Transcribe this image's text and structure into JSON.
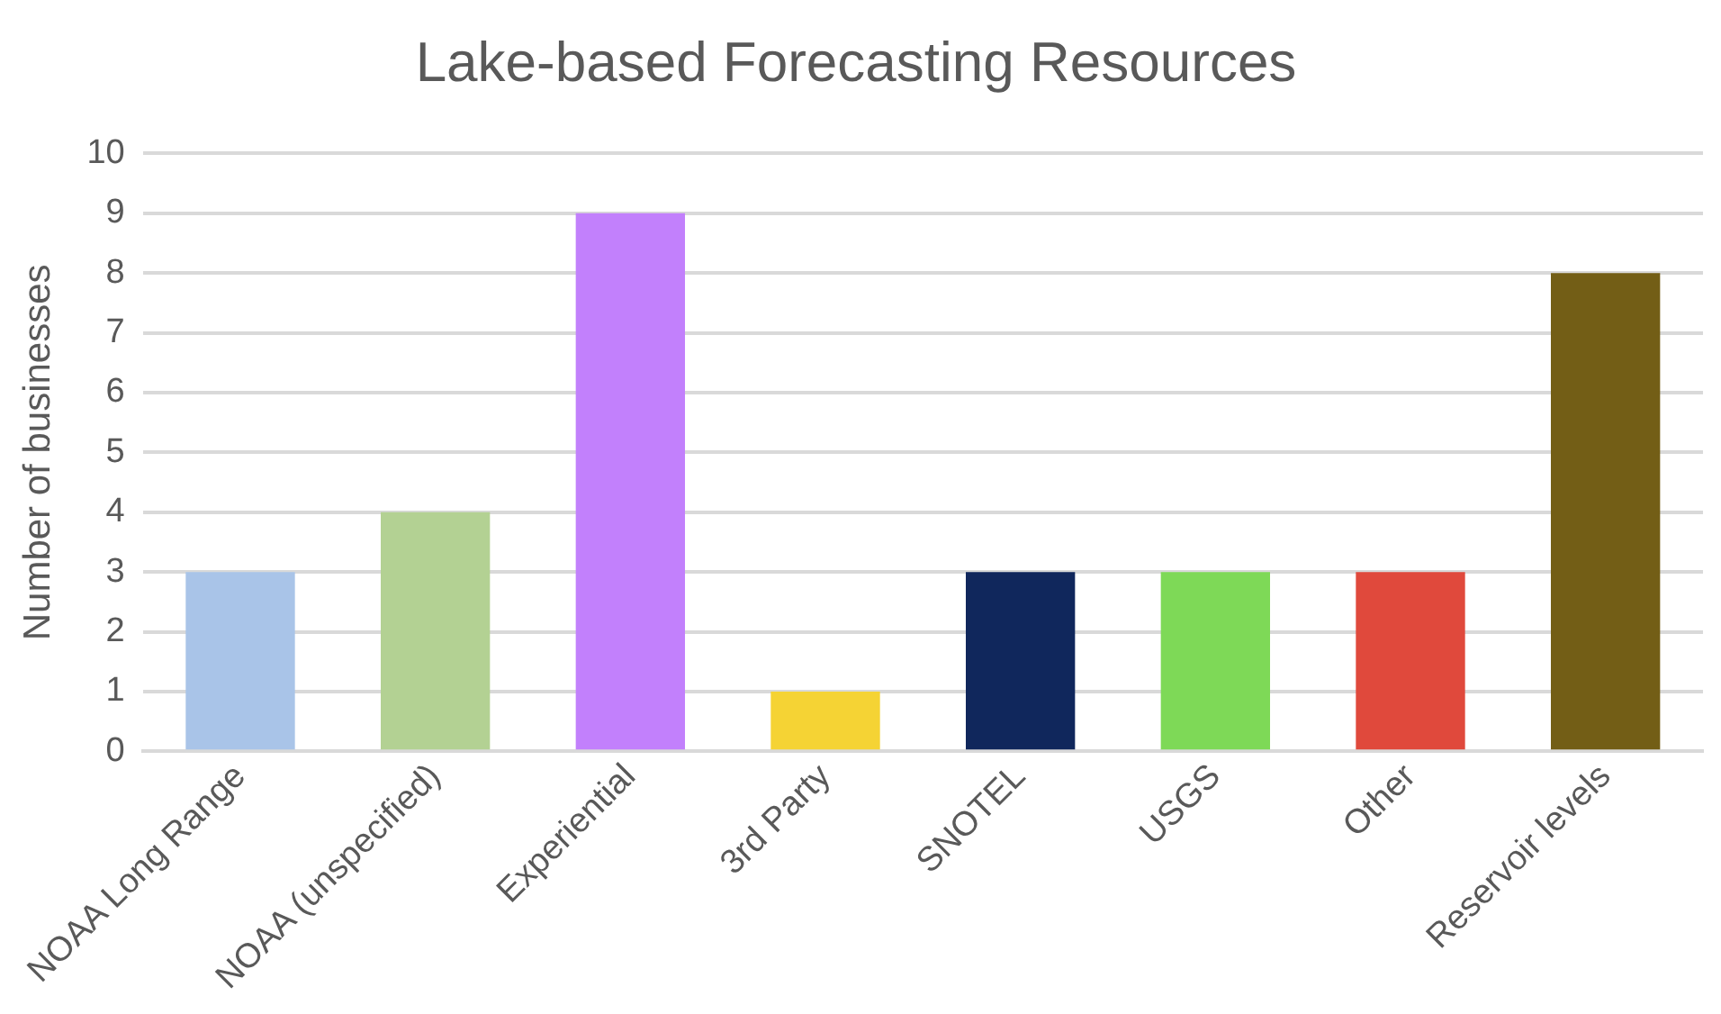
{
  "chart_data": {
    "type": "bar",
    "title": "Lake-based Forecasting Resources",
    "ylabel": "Number of businesses",
    "categories": [
      "NOAA Long Range",
      "NOAA (unspecified)",
      "Experiential",
      "3rd Party",
      "SNOTEL",
      "USGS",
      "Other",
      "Reservoir levels"
    ],
    "values": [
      3,
      4,
      9,
      1,
      3,
      3,
      3,
      8
    ],
    "colors": [
      "#a9c4e8",
      "#b3d193",
      "#c280fc",
      "#f5d334",
      "#10275c",
      "#7ed957",
      "#e0493c",
      "#735e16"
    ],
    "ylim": [
      0,
      10
    ],
    "yticks": [
      0,
      1,
      2,
      3,
      4,
      5,
      6,
      7,
      8,
      9,
      10
    ],
    "grid": "y",
    "legend": false
  }
}
